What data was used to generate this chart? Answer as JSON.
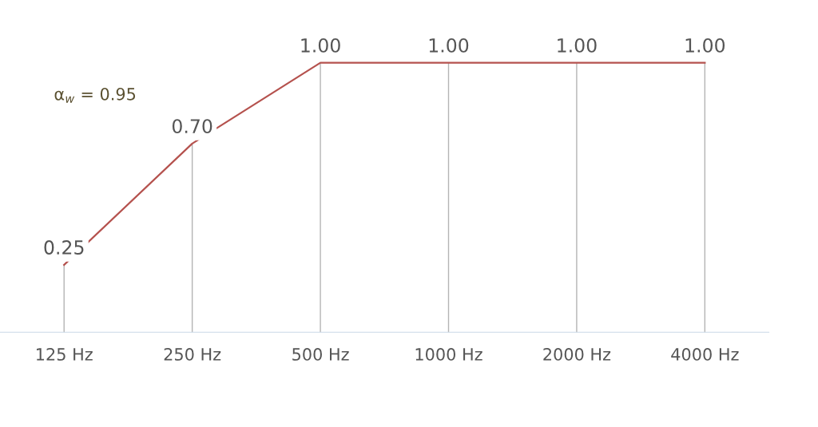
{
  "chart_data": {
    "type": "line",
    "categories": [
      "125 Hz",
      "250 Hz",
      "500 Hz",
      "1000 Hz",
      "2000 Hz",
      "4000 Hz"
    ],
    "series": [
      {
        "color": "#b5524e",
        "values": [
          0.25,
          0.7,
          1.0,
          1.0,
          1.0,
          1.0
        ],
        "value_labels": [
          "0.25",
          "0.70",
          "1.00",
          "1.00",
          "1.00",
          "1.00"
        ]
      }
    ],
    "tick_labels": "x",
    "marker": "none",
    "line_style": "solid",
    "grid": "x",
    "annotations": [
      "α$_{w}$ = 0.95"
    ]
  }
}
